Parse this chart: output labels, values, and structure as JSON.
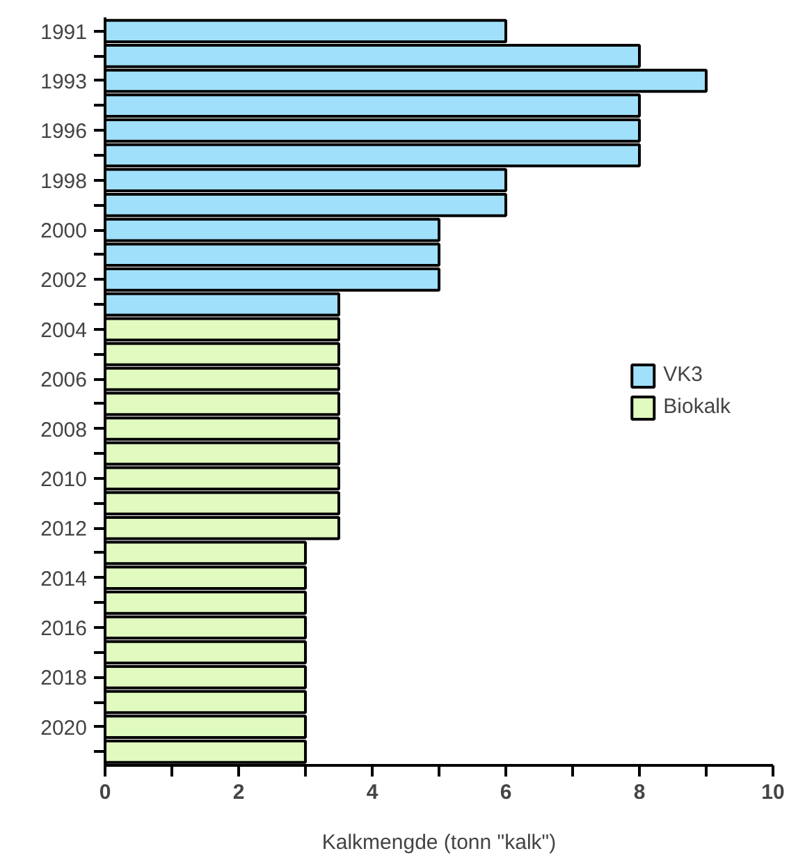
{
  "chart_data": {
    "type": "bar",
    "orientation": "horizontal",
    "xlabel": "Kalkmengde (tonn \"kalk\")",
    "categories": [
      "1991",
      null,
      "1993",
      null,
      "1996",
      null,
      "1998",
      null,
      "2000",
      null,
      "2002",
      null,
      "2004",
      null,
      "2006",
      null,
      "2008",
      null,
      "2010",
      null,
      "2012",
      null,
      "2014",
      null,
      "2016",
      null,
      "2018",
      null,
      "2020",
      null
    ],
    "series": [
      {
        "name": "VK3",
        "color": "#a0e0fa",
        "values": [
          6,
          8,
          9,
          8,
          8,
          8,
          6,
          6,
          5,
          5,
          5,
          3.5,
          null,
          null,
          null,
          null,
          null,
          null,
          null,
          null,
          null,
          null,
          null,
          null,
          null,
          null,
          null,
          null,
          null,
          null
        ]
      },
      {
        "name": "Biokalk",
        "color": "#e0fac0",
        "values": [
          null,
          null,
          null,
          null,
          null,
          null,
          null,
          null,
          null,
          null,
          null,
          null,
          3.5,
          3.5,
          3.5,
          3.5,
          3.5,
          3.5,
          3.5,
          3.5,
          3.5,
          3,
          3,
          3,
          3,
          3,
          3,
          3,
          3,
          3
        ]
      }
    ],
    "xlim": [
      0,
      10
    ],
    "xticks": [
      0,
      {
        "value": 1,
        "label": null
      },
      2,
      {
        "value": 3,
        "label": null
      },
      4,
      {
        "value": 5,
        "label": null
      },
      6,
      {
        "value": 7,
        "label": null
      },
      8,
      {
        "value": 9,
        "label": null
      },
      10
    ],
    "grid": false,
    "legend": "right"
  }
}
